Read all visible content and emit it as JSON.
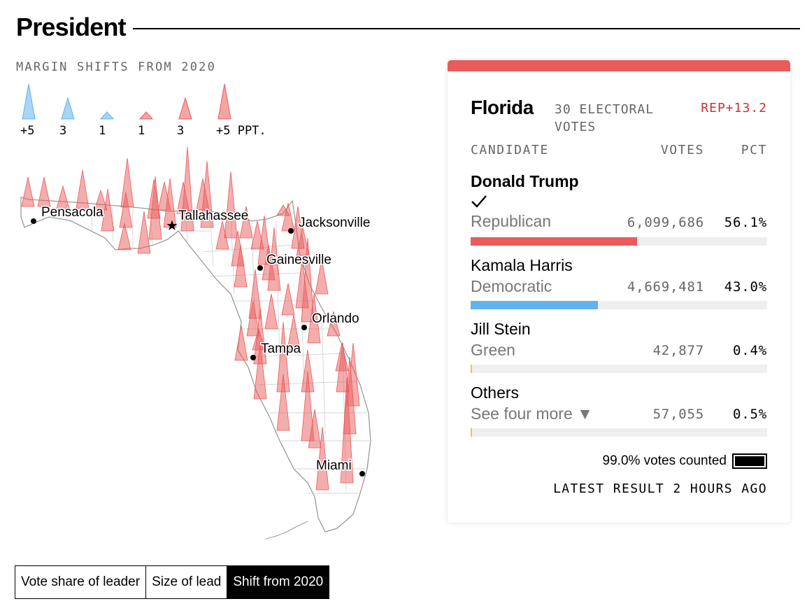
{
  "header": {
    "title": "President"
  },
  "legend": {
    "title": "MARGIN SHIFTS FROM 2020",
    "items": [
      {
        "label": "+5",
        "party": "dem",
        "magnitude": 5
      },
      {
        "label": "3",
        "party": "dem",
        "magnitude": 3
      },
      {
        "label": "1",
        "party": "dem",
        "magnitude": 1
      },
      {
        "label": "1",
        "party": "rep",
        "magnitude": 1
      },
      {
        "label": "3",
        "party": "rep",
        "magnitude": 3
      },
      {
        "label": "+5 PPT.",
        "party": "rep",
        "magnitude": 5
      }
    ]
  },
  "map": {
    "cities": [
      {
        "name": "Pensacola",
        "marker": "dot"
      },
      {
        "name": "Tallahassee",
        "marker": "star"
      },
      {
        "name": "Jacksonville",
        "marker": "dot"
      },
      {
        "name": "Gainesville",
        "marker": "dot"
      },
      {
        "name": "Orlando",
        "marker": "dot"
      },
      {
        "name": "Tampa",
        "marker": "dot"
      },
      {
        "name": "Miami",
        "marker": "dot"
      }
    ]
  },
  "toggle": {
    "options": [
      "Vote share of leader",
      "Size of lead",
      "Shift from 2020"
    ],
    "active": "Shift from 2020"
  },
  "result": {
    "state": "Florida",
    "electoral_votes": "30 ELECTORAL VOTES",
    "margin": "REP+13.2",
    "columns": {
      "candidate": "CANDIDATE",
      "votes": "VOTES",
      "pct": "PCT"
    },
    "candidates": [
      {
        "name": "Donald Trump",
        "party": "Republican",
        "votes": "6,099,686",
        "pct": "56.1%",
        "share": 56.1,
        "winner": true
      },
      {
        "name": "Kamala Harris",
        "party": "Democratic",
        "votes": "4,669,481",
        "pct": "43.0%",
        "share": 43.0,
        "winner": false
      },
      {
        "name": "Jill Stein",
        "party": "Green",
        "votes": "42,877",
        "pct": "0.4%",
        "share": 0.4,
        "winner": false
      },
      {
        "name": "Others",
        "party": "See four more ▼",
        "votes": "57,055",
        "pct": "0.5%",
        "share": 0.5,
        "winner": false
      }
    ],
    "counted": "99.0% votes counted",
    "counted_share": 99.0,
    "latest": "LATEST RESULT 2 HOURS AGO"
  },
  "colors": {
    "rep": "#ea5b5b",
    "dem": "#62b2ee",
    "green": "#f0c04a",
    "others": "#f0c04a",
    "rep_text": "#c8323f"
  }
}
